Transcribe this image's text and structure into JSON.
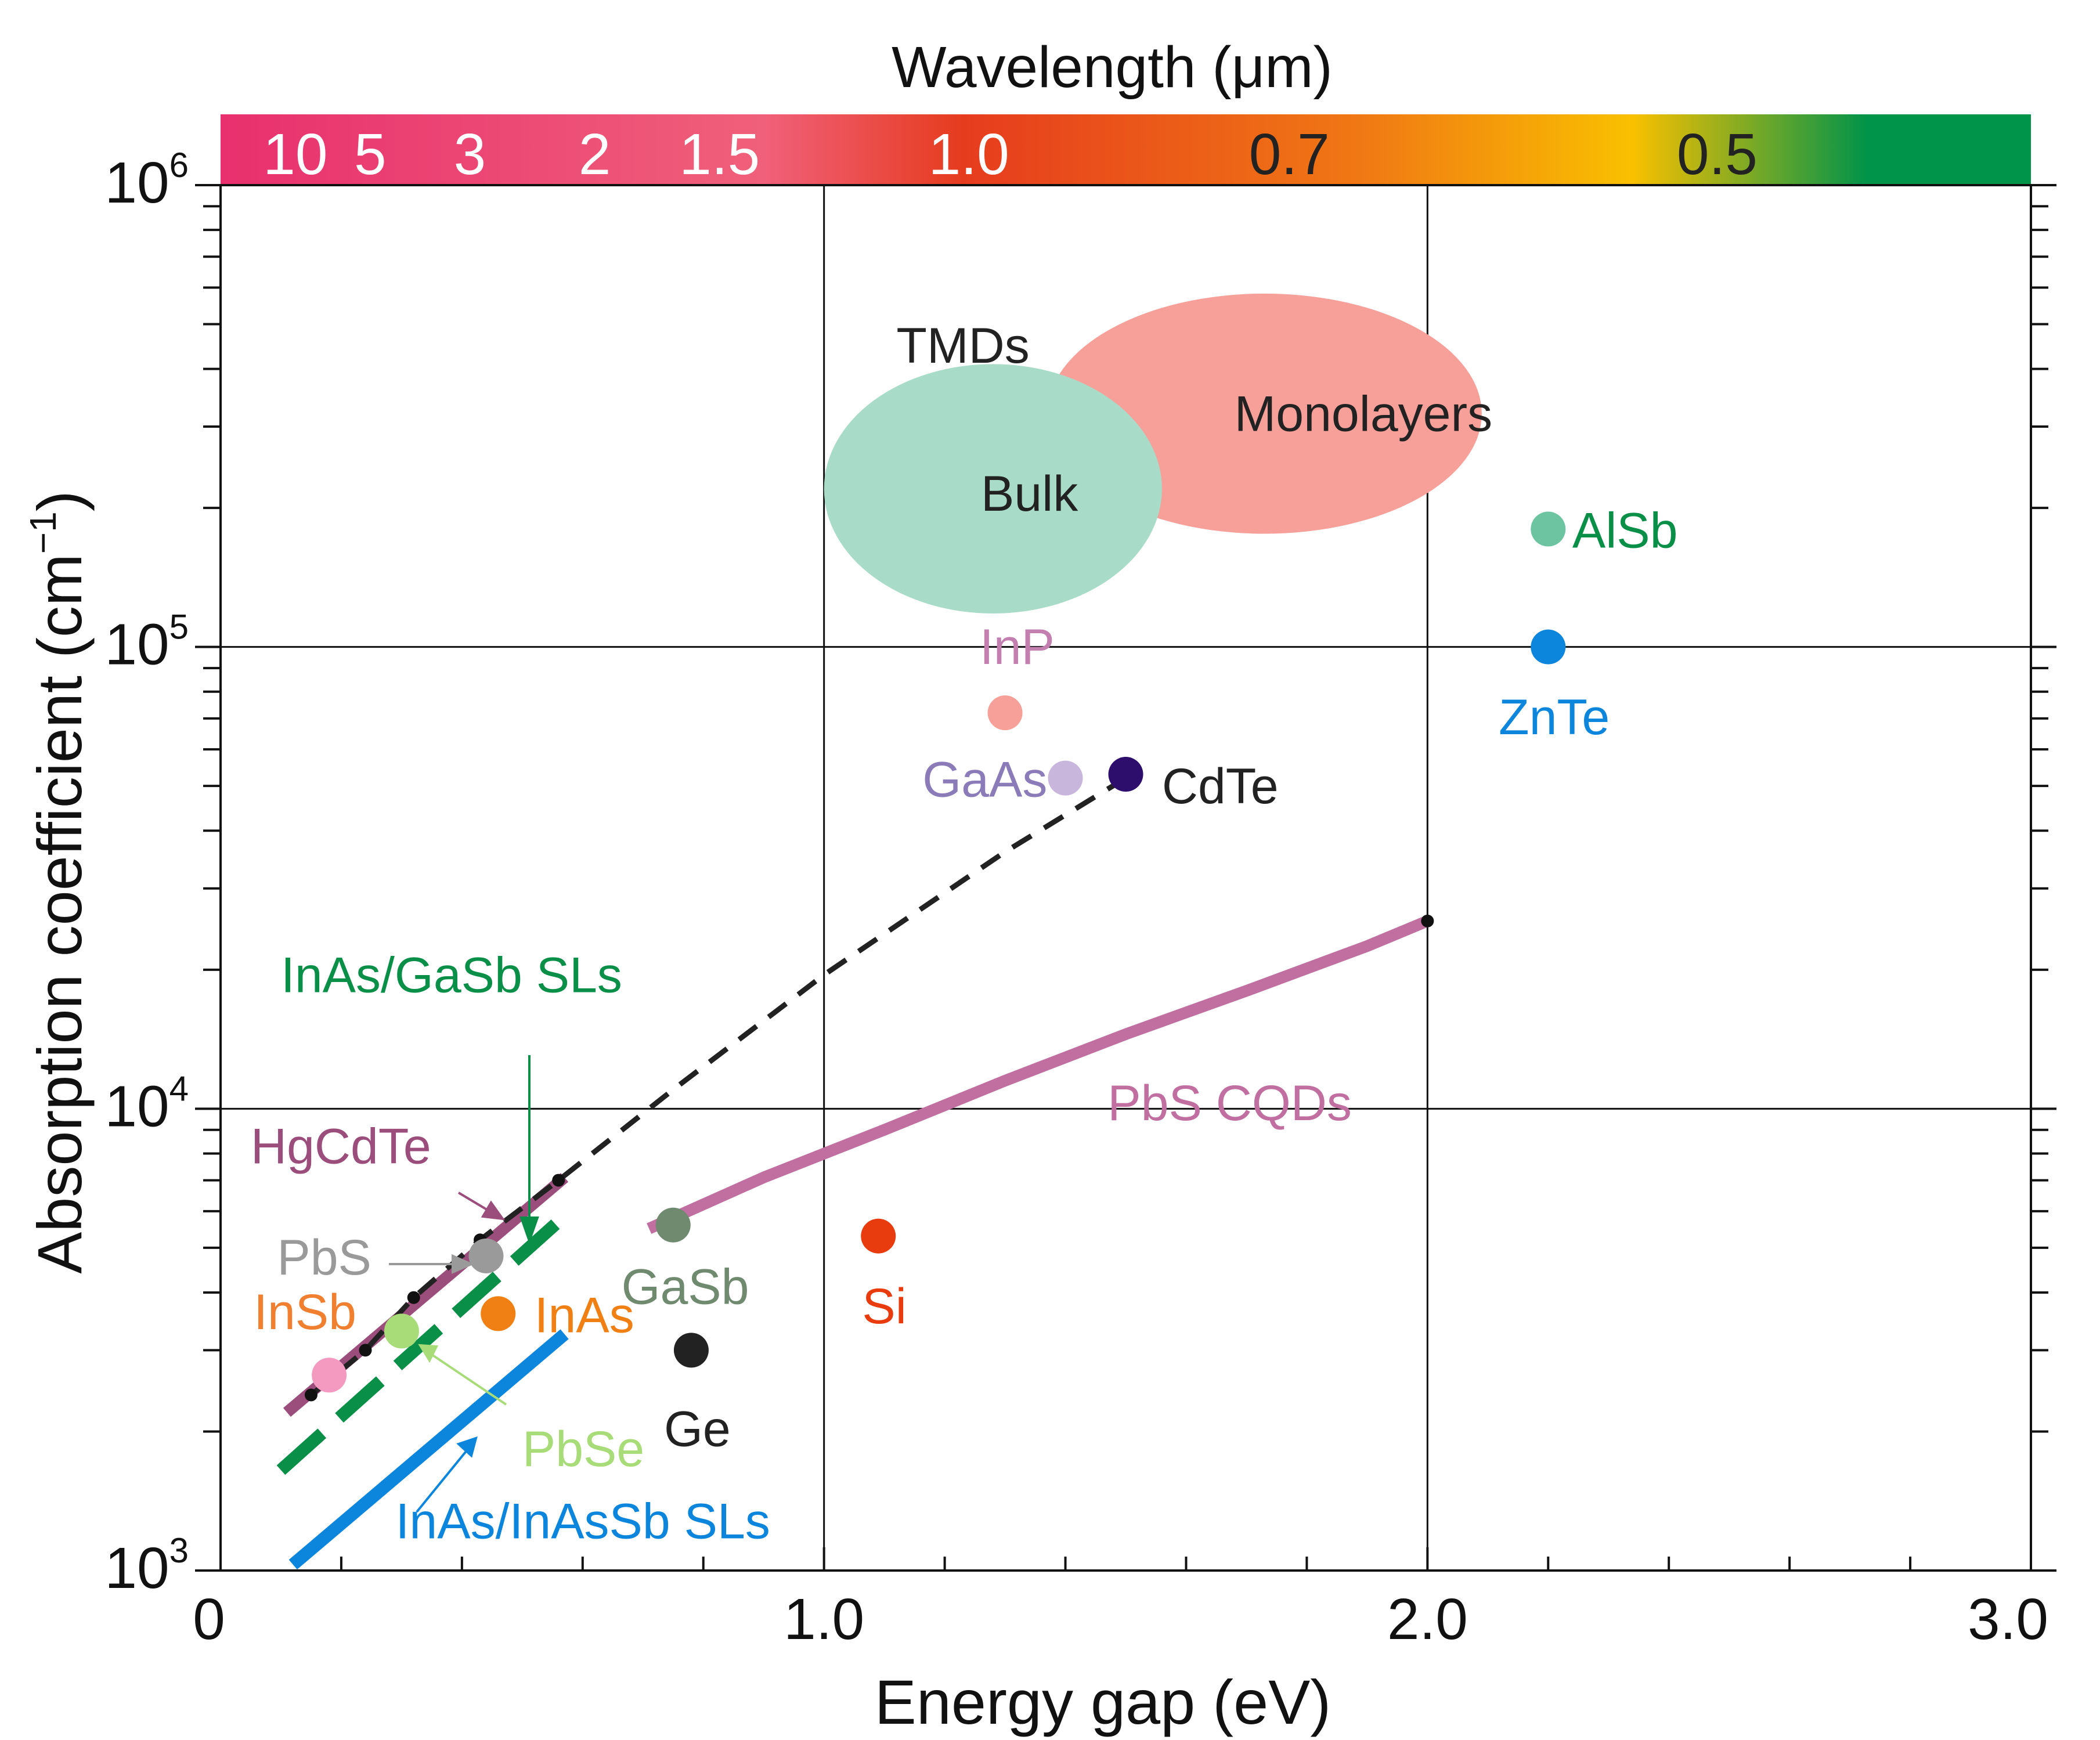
{
  "chart_data": {
    "type": "scatter",
    "title": "",
    "xlabel": "Energy gap (eV)",
    "ylabel": "Absorption coefficient (cm",
    "ylabel_sup": "−1",
    "ylabel_close": ")",
    "xlim": [
      0,
      3.0
    ],
    "ylim": [
      1000,
      1000000
    ],
    "yscale": "log",
    "x_ticks": [
      {
        "value": 0,
        "label": "0"
      },
      {
        "value": 1.0,
        "label": "1.0"
      },
      {
        "value": 2.0,
        "label": "2.0"
      },
      {
        "value": 3.0,
        "label": "3.0"
      }
    ],
    "y_ticks": [
      {
        "value": 1000,
        "base": "10",
        "exp": "3"
      },
      {
        "value": 10000,
        "base": "10",
        "exp": "4"
      },
      {
        "value": 100000,
        "base": "10",
        "exp": "5"
      },
      {
        "value": 1000000,
        "base": "10",
        "exp": "6"
      }
    ],
    "gridlines_x": [
      1.0,
      2.0
    ],
    "gridlines_y": [
      10000,
      100000
    ],
    "wavelength_bar": {
      "title": "Wavelength (μm)",
      "colors": [
        "#e8306e",
        "#f0607a",
        "#e63c1e",
        "#f07814",
        "#f9c000",
        "#00934a"
      ],
      "labels": [
        {
          "text": "10",
          "energy": 0.124,
          "color": "#ffffff"
        },
        {
          "text": "5",
          "energy": 0.248,
          "color": "#ffffff"
        },
        {
          "text": "3",
          "energy": 0.413,
          "color": "#ffffff"
        },
        {
          "text": "2",
          "energy": 0.62,
          "color": "#ffffff"
        },
        {
          "text": "1.5",
          "energy": 0.827,
          "color": "#ffffff"
        },
        {
          "text": "1.0",
          "energy": 1.24,
          "color": "#ffffff"
        },
        {
          "text": "0.7",
          "energy": 1.771,
          "color": "#222222"
        },
        {
          "text": "0.5",
          "energy": 2.48,
          "color": "#222222"
        }
      ]
    },
    "points": [
      {
        "name": "InP",
        "x": 1.3,
        "y": 72000,
        "color": "#f7a09a",
        "label_color": "#c27fb0",
        "label_dx": 0.02,
        "label_fy": 1.4,
        "anchor": "middle"
      },
      {
        "name": "GaAs",
        "x": 1.4,
        "y": 52000,
        "color": "#c8b6dc",
        "label_color": "#8b7bb8",
        "label_dx": -0.03,
        "label_fy": 1.0,
        "anchor": "end"
      },
      {
        "name": "CdTe",
        "x": 1.5,
        "y": 53000,
        "color": "#2e0e6c",
        "label_color": "#222222",
        "label_dx": 0.06,
        "label_fy": 0.95,
        "anchor": "start"
      },
      {
        "name": "AlSb",
        "x": 2.2,
        "y": 180000,
        "color": "#6cc4a0",
        "label_color": "#0a8f48",
        "label_dx": 0.04,
        "label_fy": 1.0,
        "anchor": "start"
      },
      {
        "name": "ZnTe",
        "x": 2.2,
        "y": 100000,
        "color": "#0c86dc",
        "label_color": "#0c86dc",
        "label_dx": 0.01,
        "label_fy": 0.71,
        "anchor": "middle"
      },
      {
        "name": "Si",
        "x": 1.09,
        "y": 5300,
        "color": "#e83c0e",
        "label_color": "#e83c0e",
        "label_dx": 0.01,
        "label_fy": 0.71,
        "anchor": "middle"
      },
      {
        "name": "GaSb",
        "x": 0.75,
        "y": 5600,
        "color": "#6f8a6f",
        "label_color": "#6f8a6f",
        "label_dx": 0.02,
        "label_fy": 0.74,
        "anchor": "middle"
      },
      {
        "name": "Ge",
        "x": 0.78,
        "y": 3000,
        "color": "#222222",
        "label_color": "#222222",
        "label_dx": 0.01,
        "label_fy": 0.68,
        "anchor": "middle"
      },
      {
        "name": "InAs",
        "x": 0.46,
        "y": 3600,
        "color": "#f07f14",
        "label_color": "#f07f14",
        "label_dx": 0.06,
        "label_fy": 1.0,
        "anchor": "start"
      },
      {
        "name": "PbS",
        "x": 0.44,
        "y": 4800,
        "color": "#9a9a9a",
        "label_color": "#9a9a9a",
        "label_dx": -0.19,
        "label_fy": 1.0,
        "anchor": "end"
      },
      {
        "name": "InSb",
        "x": 0.18,
        "y": 2650,
        "color": "#f49ac0",
        "label_color": "#f07f30",
        "label_dx": -0.04,
        "label_fy": 1.38,
        "anchor": "middle"
      },
      {
        "name": "PbSe",
        "x": 0.3,
        "y": 3300,
        "color": "#a8dc78",
        "label_color": "#a8dc78",
        "label_dx": 0.2,
        "label_fy": 0.56,
        "anchor": "start"
      }
    ],
    "series": [
      {
        "name": "HgCdTe",
        "style": "solid",
        "color": "#9b4d7c",
        "x": [
          0.11,
          0.57
        ],
        "y": [
          2200,
          7100
        ]
      },
      {
        "name": "HgCdTe trend",
        "style": "dashed",
        "color": "#222222",
        "x": [
          0.15,
          0.24,
          0.32,
          0.43,
          0.56,
          0.75,
          1.0,
          1.3,
          1.5
        ],
        "y": [
          2400,
          3000,
          3900,
          5200,
          7000,
          11000,
          19500,
          36000,
          52000
        ]
      },
      {
        "name": "InAs/GaSb SLs",
        "style": "dashed",
        "color": "#0a8f48",
        "x": [
          0.1,
          0.56
        ],
        "y": [
          1650,
          5700
        ]
      },
      {
        "name": "InAs/InAsSb SLs",
        "style": "solid",
        "color": "#0c86dc",
        "x": [
          0.12,
          0.57
        ],
        "y": [
          1030,
          3250
        ]
      },
      {
        "name": "PbS CQDs",
        "style": "solid",
        "color": "#c06fa0",
        "x": [
          0.71,
          0.9,
          1.1,
          1.3,
          1.5,
          1.7,
          1.9,
          2.0
        ],
        "y": [
          5500,
          7100,
          9000,
          11500,
          14500,
          18000,
          22500,
          25500
        ]
      }
    ],
    "series_marker_dots": [
      {
        "x": 0.15,
        "y": 2400
      },
      {
        "x": 0.24,
        "y": 3000
      },
      {
        "x": 0.32,
        "y": 3900
      },
      {
        "x": 0.43,
        "y": 5200
      },
      {
        "x": 0.56,
        "y": 7000
      },
      {
        "x": 2.0,
        "y": 25500
      }
    ],
    "annotations": [
      {
        "text": "TMDs",
        "x": 1.12,
        "y": 450000,
        "color": "#222222"
      },
      {
        "text": "Monolayers",
        "x": 1.68,
        "y": 320000,
        "color": "#222222"
      },
      {
        "text": "Bulk",
        "x": 1.26,
        "y": 215000,
        "color": "#222222"
      },
      {
        "text": "InAs/GaSb SLs",
        "x": 0.1,
        "y": 19500,
        "color": "#0a8f48"
      },
      {
        "text": "HgCdTe",
        "x": 0.05,
        "y": 8300,
        "color": "#9b4d7c"
      },
      {
        "text": "PbS CQDs",
        "x": 1.47,
        "y": 10300,
        "color": "#c06fa0"
      },
      {
        "text": "InAs/InAsSb SLs",
        "x": 0.29,
        "y": 1280,
        "color": "#0c86dc"
      }
    ],
    "regions": [
      {
        "name": "Monolayers",
        "x": 1.73,
        "y": 320000,
        "rx_ev": 0.36,
        "ry_decades": 0.26,
        "color": "#f7a09a"
      },
      {
        "name": "Bulk",
        "x": 1.28,
        "y": 220000,
        "rx_ev": 0.28,
        "ry_decades": 0.27,
        "color": "#a8dcc8"
      }
    ]
  }
}
